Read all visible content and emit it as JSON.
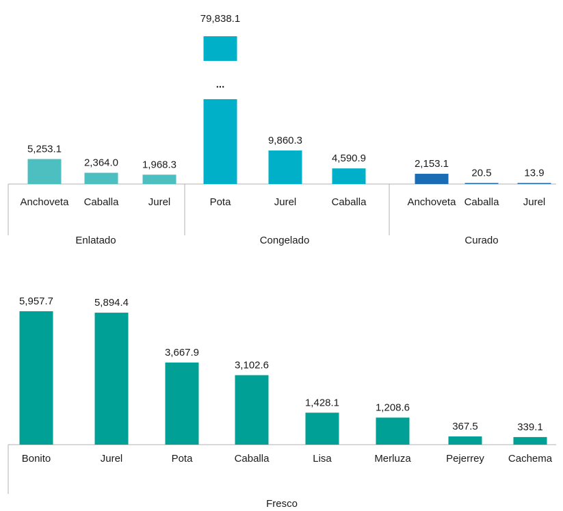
{
  "chart_data": [
    {
      "type": "bar",
      "groups": [
        {
          "name": "Enlatado",
          "color": "#4dbfc0",
          "categories": [
            "Anchoveta",
            "Caballa",
            "Jurel"
          ],
          "values": [
            5253.1,
            2364.0,
            1968.3
          ],
          "value_labels": [
            "5,253.1",
            "2,364.0",
            "1,968.3"
          ]
        },
        {
          "name": "Congelado",
          "color": "#00b0c8",
          "categories": [
            "Pota",
            "Jurel",
            "Caballa"
          ],
          "values": [
            79838.1,
            9860.3,
            4590.9
          ],
          "value_labels": [
            "79,838.1",
            "9,860.3",
            "4,590.9"
          ],
          "axis_break": "..."
        },
        {
          "name": "Curado",
          "color": "#1a6db5",
          "categories": [
            "Anchoveta",
            "Caballa",
            "Jurel"
          ],
          "values": [
            2153.1,
            20.5,
            13.9
          ],
          "value_labels": [
            "2,153.1",
            "20.5",
            "13.9"
          ]
        }
      ]
    },
    {
      "type": "bar",
      "groups": [
        {
          "name": "Fresco",
          "color": "#00a096",
          "categories": [
            "Bonito",
            "Jurel",
            "Pota",
            "Caballa",
            "Lisa",
            "Merluza",
            "Pejerrey",
            "Cachema"
          ],
          "values": [
            5957.7,
            5894.4,
            3667.9,
            3102.6,
            1428.1,
            1208.6,
            367.5,
            339.1
          ],
          "value_labels": [
            "5,957.7",
            "5,894.4",
            "3,667.9",
            "3,102.6",
            "1,428.1",
            "1,208.6",
            "367.5",
            "339.1"
          ]
        }
      ]
    }
  ]
}
